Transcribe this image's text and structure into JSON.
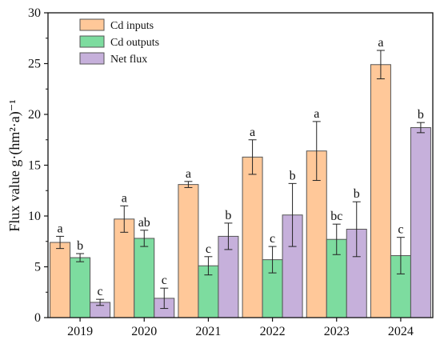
{
  "chart_data": {
    "type": "bar",
    "title": "",
    "xlabel": "",
    "ylabel": "Flux value g·(hm²·a)⁻¹",
    "ylim": [
      0,
      30
    ],
    "yticks": [
      "0",
      "5",
      "10",
      "15",
      "20",
      "25",
      "30"
    ],
    "categories": [
      "2019",
      "2020",
      "2021",
      "2022",
      "2023",
      "2024"
    ],
    "grid": false,
    "legend_position": "top-left",
    "series": [
      {
        "name": "Cd inputs",
        "color": "#FFC899",
        "values": [
          7.4,
          9.7,
          13.1,
          15.8,
          16.4,
          24.9
        ],
        "errors": [
          0.6,
          1.3,
          0.3,
          1.7,
          2.9,
          1.4
        ],
        "labels": [
          "a",
          "a",
          "a",
          "a",
          "a",
          "a"
        ]
      },
      {
        "name": "Cd outputs",
        "color": "#7DDC9F",
        "values": [
          5.9,
          7.8,
          5.1,
          5.7,
          7.7,
          6.1
        ],
        "errors": [
          0.4,
          0.8,
          0.9,
          1.3,
          1.5,
          1.8
        ],
        "labels": [
          "b",
          "ab",
          "c",
          "c",
          "bc",
          "c"
        ]
      },
      {
        "name": "Net flux",
        "color": "#C6B0DB",
        "values": [
          1.5,
          1.9,
          8.0,
          10.1,
          8.7,
          18.7
        ],
        "errors": [
          0.3,
          1.0,
          1.3,
          3.1,
          2.7,
          0.5
        ],
        "labels": [
          "c",
          "c",
          "b",
          "b",
          "b",
          "b"
        ]
      }
    ]
  }
}
